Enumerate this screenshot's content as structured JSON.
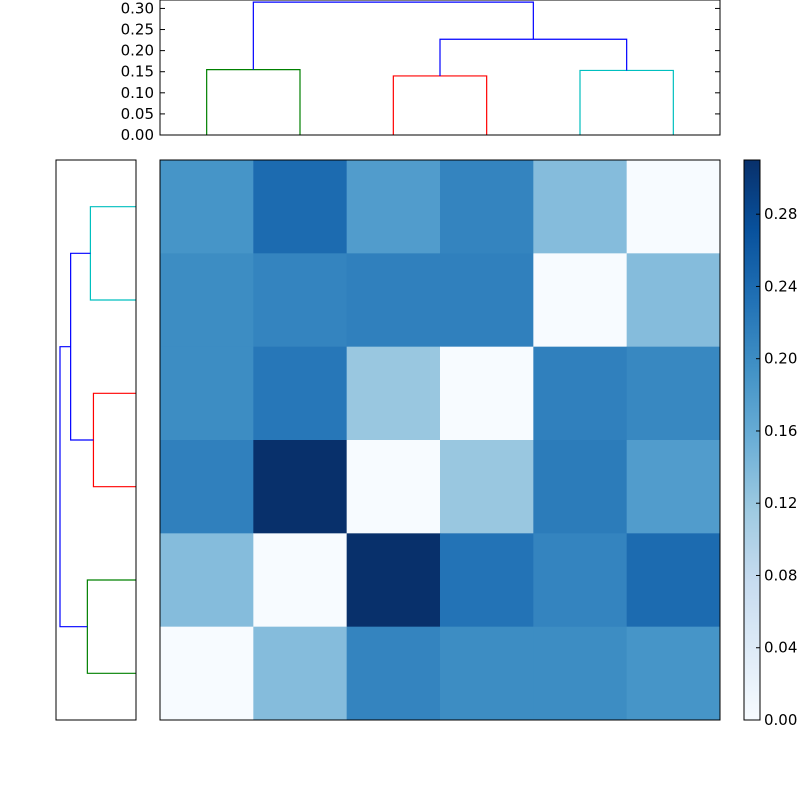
{
  "chart_data": [
    {
      "type": "dendrogram",
      "orientation": "top",
      "ylim": [
        0,
        0.32
      ],
      "yticks": [
        "0.00",
        "0.05",
        "0.10",
        "0.15",
        "0.20",
        "0.25",
        "0.30"
      ],
      "ytick_values": [
        0,
        0.05,
        0.1,
        0.15,
        0.2,
        0.25,
        0.3
      ],
      "leaves": 6,
      "links": [
        {
          "left": 0,
          "right": 1,
          "height": 0.155,
          "color": "#008000"
        },
        {
          "left": 2,
          "right": 3,
          "height": 0.14,
          "color": "#ff0000"
        },
        {
          "left": 4,
          "right": 5,
          "height": 0.153,
          "color": "#00bfbf"
        },
        {
          "left": "2-3",
          "right": "4-5",
          "height": 0.227,
          "color": "#0000ff"
        },
        {
          "left": "0-1",
          "right": "2-5",
          "height": 0.315,
          "color": "#0000ff"
        }
      ]
    },
    {
      "type": "dendrogram",
      "orientation": "left",
      "leaves": 6,
      "links": [
        {
          "left": 0,
          "right": 1,
          "height": 0.6,
          "color": "#00bfbf"
        },
        {
          "left": 2,
          "right": 3,
          "height": 0.56,
          "color": "#ff0000"
        },
        {
          "left": 4,
          "right": 5,
          "height": 0.64,
          "color": "#008000"
        },
        {
          "left": "0-1",
          "right": "2-3",
          "height": 0.86,
          "color": "#0000ff"
        },
        {
          "left": "0-3",
          "right": "4-5",
          "height": 1.0,
          "color": "#0000ff"
        }
      ]
    },
    {
      "type": "heatmap",
      "rows": 6,
      "cols": 6,
      "values": [
        [
          0.19,
          0.24,
          0.18,
          0.21,
          0.135,
          0.0
        ],
        [
          0.2,
          0.21,
          0.215,
          0.215,
          0.0,
          0.135
        ],
        [
          0.2,
          0.225,
          0.12,
          0.0,
          0.215,
          0.205
        ],
        [
          0.215,
          0.31,
          0.0,
          0.12,
          0.22,
          0.18
        ],
        [
          0.135,
          0.0,
          0.31,
          0.23,
          0.21,
          0.24
        ],
        [
          0.0,
          0.135,
          0.21,
          0.2,
          0.2,
          0.19
        ]
      ],
      "colormap": [
        "#f7fbff",
        "#deebf7",
        "#c6dbef",
        "#9ecae1",
        "#6baed6",
        "#4292c6",
        "#2171b5",
        "#08519c",
        "#08306b"
      ],
      "colorbar": {
        "ylim": [
          0,
          0.31
        ],
        "ticks": [
          "0.00",
          "0.04",
          "0.08",
          "0.12",
          "0.16",
          "0.20",
          "0.24",
          "0.28"
        ],
        "tick_values": [
          0,
          0.04,
          0.08,
          0.12,
          0.16,
          0.2,
          0.24,
          0.28
        ]
      }
    }
  ]
}
